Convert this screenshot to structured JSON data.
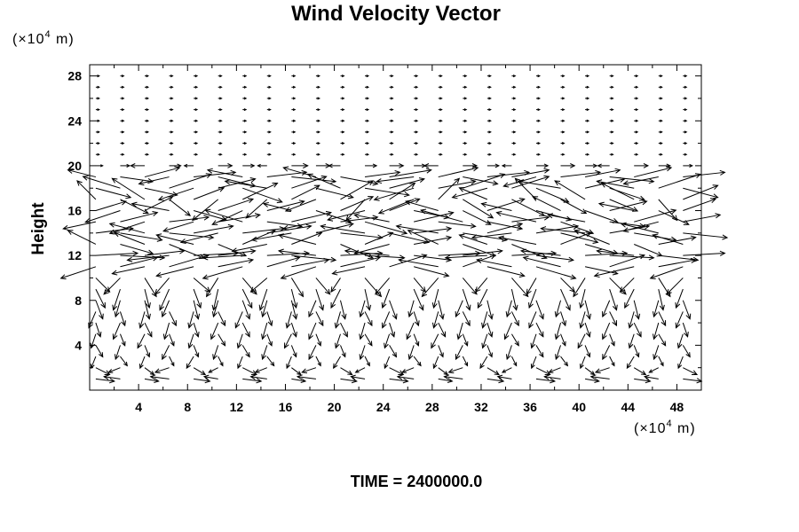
{
  "chart_data": {
    "type": "vector-field",
    "title": "Wind Velocity Vector",
    "ylabel": "Height",
    "xlabel": "",
    "x_unit_prefix": "(×10",
    "x_unit_exp": "4",
    "x_unit_suffix": " m)",
    "y_unit_prefix": "(×10",
    "y_unit_exp": "4",
    "y_unit_suffix": " m)",
    "xlim": [
      0,
      50
    ],
    "ylim": [
      0,
      29
    ],
    "x_ticks": [
      4,
      8,
      12,
      16,
      20,
      24,
      28,
      32,
      36,
      40,
      44,
      48
    ],
    "y_ticks": [
      4,
      8,
      12,
      16,
      20,
      24,
      28
    ],
    "grid": false,
    "vector_grid": {
      "x_start": 0.5,
      "x_step": 2,
      "x_count": 25,
      "y_start": 1,
      "y_step": 1,
      "y_count": 28
    },
    "rows": [
      {
        "y": 20,
        "u": [
          0.3,
          0.4,
          -0.6,
          0.5,
          -0.4,
          0.6,
          0.5,
          -0.4,
          0.7,
          0.6,
          -0.5,
          0.5,
          0.6,
          0.5,
          -0.6,
          0.6,
          0.5,
          -0.4,
          0.5,
          0.6,
          0.5,
          -0.5,
          0.6,
          0.5,
          0.4
        ],
        "v": [
          0,
          0,
          0,
          0,
          0,
          0,
          0,
          0,
          0,
          0,
          0,
          0,
          0,
          0,
          0,
          0,
          0,
          0,
          0,
          0,
          0,
          0,
          0,
          0,
          0
        ]
      },
      {
        "y": 19,
        "u": [
          -1.2,
          1.4,
          1.5,
          -1.3,
          1.8,
          1.6,
          -1.5,
          1.7,
          1.9,
          -1.4,
          1.6,
          1.5,
          1.8,
          -1.6,
          1.7,
          1.5,
          1.8,
          1.6,
          -1.4,
          1.7,
          1.5,
          1.9,
          1.6,
          -1.5,
          1.8
        ],
        "v": [
          0.3,
          -0.2,
          0.4,
          -0.3,
          0.2,
          -0.4,
          0.3,
          0.2,
          -0.2,
          0.4,
          -0.3,
          0.2,
          0.3,
          -0.2,
          0.4,
          -0.3,
          0.2,
          0.3,
          -0.4,
          0.2,
          0.3,
          -0.2,
          0.4,
          -0.3,
          0.2
        ]
      },
      {
        "y": 18,
        "u": [
          1.5,
          -1.6,
          1.4,
          1.8,
          -1.5,
          1.6,
          1.7,
          -1.8,
          1.5,
          1.6,
          -1.4,
          1.9,
          1.5,
          -1.7,
          1.6,
          1.8,
          -1.5,
          1.6,
          1.4,
          -1.8,
          1.7,
          1.5,
          -1.6,
          1.8,
          1.5
        ],
        "v": [
          -0.4,
          0.5,
          -0.3,
          0.6,
          -0.5,
          0.4,
          -0.6,
          0.3,
          0.5,
          -0.4,
          0.6,
          -0.3,
          0.4,
          -0.5,
          0.3,
          0.6,
          -0.4,
          0.5,
          -0.6,
          0.3,
          0.4,
          -0.5,
          0.3,
          0.6,
          -0.4
        ]
      },
      {
        "y": 17,
        "u": [
          -0.8,
          1.2,
          -1.4,
          0.9,
          1.3,
          -1.1,
          1.5,
          -0.9,
          1.2,
          -1.3,
          1.4,
          -0.8,
          1.1,
          -1.5,
          0.9,
          1.3,
          -1.2,
          1.4,
          -0.9,
          1.1,
          -1.3,
          1.2,
          -1.4,
          0.8,
          1.5
        ],
        "v": [
          0.8,
          -0.6,
          0.9,
          -0.7,
          0.5,
          -0.9,
          0.7,
          -0.8,
          0.6,
          -0.5,
          0.8,
          -0.9,
          0.7,
          -0.6,
          0.9,
          -0.8,
          0.5,
          -0.7,
          0.9,
          -0.6,
          0.8,
          -0.5,
          0.7,
          -0.9,
          0.6
        ]
      },
      {
        "y": 16,
        "u": [
          1.3,
          -1.5,
          1.2,
          -1.6,
          1.4,
          1.5,
          -1.3,
          1.6,
          -1.2,
          1.5,
          1.4,
          -1.6,
          1.3,
          1.5,
          -1.4,
          1.2,
          1.6,
          -1.3,
          1.5,
          -1.2,
          1.4,
          1.6,
          -1.5,
          1.3,
          1.4
        ],
        "v": [
          0.4,
          -0.5,
          0.6,
          0.3,
          -0.4,
          0.5,
          -0.6,
          0.4,
          0.3,
          -0.5,
          0.6,
          -0.4,
          0.5,
          -0.3,
          0.4,
          -0.6,
          0.5,
          0.3,
          -0.4,
          0.6,
          -0.5,
          0.4,
          0.3,
          -0.6,
          0.5
        ]
      },
      {
        "y": 15,
        "u": [
          -1.4,
          1.6,
          -1.5,
          1.7,
          -1.3,
          1.8,
          -1.6,
          1.5,
          1.7,
          -1.4,
          1.6,
          1.8,
          -1.5,
          1.7,
          1.6,
          -1.8,
          1.5,
          1.6,
          -1.7,
          1.4,
          -1.6,
          1.5,
          1.8,
          -1.5,
          1.6
        ],
        "v": [
          -0.3,
          0.4,
          -0.5,
          0.2,
          -0.4,
          0.3,
          0.5,
          -0.2,
          0.4,
          -0.3,
          0.2,
          -0.5,
          0.3,
          0.4,
          -0.2,
          0.5,
          -0.3,
          0.2,
          0.4,
          -0.5,
          0.3,
          -0.2,
          0.5,
          -0.4,
          0.3
        ]
      },
      {
        "y": 14,
        "u": [
          1.6,
          1.8,
          -1.5,
          1.9,
          1.7,
          -1.6,
          1.8,
          1.9,
          -1.7,
          1.6,
          1.8,
          -1.9,
          1.7,
          1.6,
          -1.8,
          1.9,
          1.5,
          -1.7,
          1.8,
          1.6,
          -1.9,
          1.7,
          1.8,
          -1.6,
          1.9
        ],
        "v": [
          0.2,
          -0.3,
          0.4,
          -0.2,
          0.3,
          -0.4,
          0.2,
          0.3,
          -0.3,
          0.4,
          -0.2,
          0.3,
          -0.4,
          0.2,
          0.3,
          -0.3,
          0.4,
          -0.2,
          0.3,
          -0.4,
          0.2,
          0.3,
          -0.3,
          0.4,
          -0.2
        ]
      },
      {
        "y": 13,
        "u": [
          -1.2,
          1.4,
          -1.3,
          1.5,
          -1.6,
          1.2,
          1.4,
          -1.5,
          1.3,
          -1.6,
          1.4,
          1.2,
          -1.5,
          1.6,
          -1.3,
          1.4,
          -1.2,
          1.5,
          -1.6,
          1.3,
          1.4,
          -1.5,
          1.2,
          1.6,
          -1.3
        ],
        "v": [
          0.6,
          -0.4,
          0.5,
          -0.6,
          0.4,
          -0.5,
          0.6,
          -0.3,
          0.5,
          0.4,
          -0.6,
          0.5,
          -0.4,
          0.3,
          0.6,
          -0.5,
          0.4,
          -0.6,
          0.3,
          0.5,
          -0.4,
          0.6,
          -0.5,
          0.3,
          0.4
        ]
      },
      {
        "y": 12,
        "u": [
          1.8,
          1.9,
          1.7,
          -1.8,
          1.9,
          1.6,
          -1.7,
          1.8,
          1.9,
          -1.6,
          1.8,
          1.7,
          -1.9,
          1.6,
          1.8,
          1.7,
          -1.8,
          1.9,
          1.6,
          -1.7,
          1.8,
          1.9,
          -1.6,
          1.7,
          1.8
        ],
        "v": [
          0.1,
          -0.1,
          0.2,
          -0.2,
          0.1,
          0.2,
          -0.1,
          0.1,
          -0.2,
          0.2,
          0.1,
          -0.1,
          0.2,
          -0.2,
          0.1,
          0.2,
          -0.1,
          0.1,
          -0.2,
          0.2,
          0.1,
          -0.1,
          0.2,
          -0.2,
          0.1
        ]
      },
      {
        "y": 11,
        "u": [
          -1.5,
          1.6,
          -1.4,
          1.7,
          -1.6,
          1.5,
          -1.7,
          1.4,
          1.6,
          -1.5,
          1.7,
          -1.4,
          1.6,
          1.5,
          -1.7,
          1.4,
          1.6,
          -1.5,
          1.7,
          -1.6,
          1.4,
          1.5,
          -1.7,
          1.6,
          -1.4
        ],
        "v": [
          -0.5,
          0.4,
          -0.3,
          0.5,
          -0.4,
          0.3,
          -0.5,
          0.4,
          0.3,
          -0.5,
          0.4,
          -0.3,
          0.5,
          -0.4,
          0.3,
          0.5,
          -0.4,
          0.3,
          -0.5,
          0.4,
          -0.3,
          0.5,
          -0.4,
          0.3,
          -0.5
        ]
      },
      {
        "y": 10,
        "u": [
          0.6,
          -0.7,
          0.5,
          -0.6,
          0.7,
          -0.5,
          0.6,
          -0.7,
          0.5,
          0.6,
          -0.4,
          0.7,
          -0.6,
          0.5,
          -0.7,
          0.6,
          -0.5,
          0.7,
          -0.4,
          0.6,
          -0.5,
          0.7,
          -0.6,
          0.5,
          -0.7
        ],
        "v": [
          -0.6,
          -0.7,
          -0.8,
          -0.7,
          -0.6,
          -0.8,
          -0.7,
          -0.6,
          -0.8,
          -0.7,
          -0.6,
          -0.8,
          -0.7,
          -0.6,
          -0.8,
          -0.7,
          -0.6,
          -0.8,
          -0.7,
          -0.6,
          -0.8,
          -0.7,
          -0.6,
          -0.8,
          -0.7
        ]
      },
      {
        "y": 9,
        "u": [
          0.4,
          -0.3,
          0.2,
          -0.4,
          0.3,
          -0.2,
          0.4,
          -0.3,
          0.2,
          0.3,
          -0.4,
          0.2,
          -0.3,
          0.4,
          -0.2,
          0.3,
          -0.4,
          0.2,
          -0.3,
          0.4,
          -0.2,
          0.3,
          -0.4,
          0.2,
          -0.3
        ],
        "v": [
          -0.8,
          -0.9,
          -0.8,
          -0.9,
          -0.8,
          -0.9,
          -0.8,
          -0.9,
          -0.8,
          -0.9,
          -0.8,
          -0.9,
          -0.8,
          -0.9,
          -0.8,
          -0.9,
          -0.8,
          -0.9,
          -0.8,
          -0.9,
          -0.8,
          -0.9,
          -0.8,
          -0.9,
          -0.8
        ]
      },
      {
        "y": 8,
        "u": [
          0.3,
          -0.2,
          0.2,
          -0.3,
          0.2,
          -0.2,
          0.3,
          -0.2,
          0.2,
          -0.3,
          0.2,
          -0.2,
          0.3,
          -0.2,
          0.2,
          -0.3,
          0.2,
          -0.2,
          0.3,
          -0.2,
          0.2,
          -0.3,
          0.2,
          -0.2,
          0.3
        ],
        "v": [
          -0.8,
          -0.7,
          -0.8,
          -0.7,
          -0.8,
          -0.7,
          -0.8,
          -0.7,
          -0.8,
          -0.7,
          -0.8,
          -0.7,
          -0.8,
          -0.7,
          -0.8,
          -0.7,
          -0.8,
          -0.7,
          -0.8,
          -0.7,
          -0.8,
          -0.7,
          -0.8,
          -0.7,
          -0.8
        ]
      },
      {
        "y": 7,
        "u": [
          -0.3,
          0.2,
          -0.2,
          0.3,
          -0.2,
          0.3,
          -0.3,
          0.2,
          -0.2,
          0.3,
          -0.2,
          0.3,
          -0.3,
          0.2,
          -0.2,
          0.3,
          -0.2,
          0.3,
          -0.3,
          0.2,
          -0.2,
          0.3,
          -0.2,
          0.3,
          -0.3
        ],
        "v": [
          -0.7,
          -0.6,
          -0.7,
          -0.6,
          -0.7,
          -0.6,
          -0.7,
          -0.6,
          -0.7,
          -0.6,
          -0.7,
          -0.6,
          -0.7,
          -0.6,
          -0.7,
          -0.6,
          -0.7,
          -0.6,
          -0.7,
          -0.6,
          -0.7,
          -0.6,
          -0.7,
          -0.6,
          -0.7
        ]
      },
      {
        "y": 6,
        "u": [
          0.2,
          -0.3,
          0.3,
          -0.2,
          0.2,
          -0.3,
          0.3,
          -0.2,
          0.2,
          -0.3,
          0.3,
          -0.2,
          0.2,
          -0.3,
          0.3,
          -0.2,
          0.2,
          -0.3,
          0.3,
          -0.2,
          0.2,
          -0.3,
          0.3,
          -0.2,
          0.2
        ],
        "v": [
          -0.6,
          -0.7,
          -0.6,
          -0.7,
          -0.6,
          -0.7,
          -0.6,
          -0.7,
          -0.6,
          -0.7,
          -0.6,
          -0.7,
          -0.6,
          -0.7,
          -0.6,
          -0.7,
          -0.6,
          -0.7,
          -0.6,
          -0.7,
          -0.6,
          -0.7,
          -0.6,
          -0.7,
          -0.6
        ]
      },
      {
        "y": 5,
        "u": [
          -0.2,
          0.2,
          -0.3,
          0.2,
          -0.2,
          0.3,
          -0.2,
          0.2,
          -0.3,
          0.2,
          -0.2,
          0.3,
          -0.2,
          0.2,
          -0.3,
          0.2,
          -0.2,
          0.3,
          -0.2,
          0.2,
          -0.3,
          0.2,
          -0.2,
          0.3,
          -0.2
        ],
        "v": [
          -0.6,
          -0.5,
          -0.6,
          -0.5,
          -0.6,
          -0.5,
          -0.6,
          -0.5,
          -0.6,
          -0.5,
          -0.6,
          -0.5,
          -0.6,
          -0.5,
          -0.6,
          -0.5,
          -0.6,
          -0.5,
          -0.6,
          -0.5,
          -0.6,
          -0.5,
          -0.6,
          -0.5,
          -0.6
        ]
      },
      {
        "y": 4,
        "u": [
          0.3,
          -0.2,
          0.2,
          -0.3,
          0.2,
          -0.2,
          0.3,
          -0.2,
          0.2,
          -0.3,
          0.2,
          -0.2,
          0.3,
          -0.2,
          0.2,
          -0.3,
          0.2,
          -0.2,
          0.3,
          -0.2,
          0.2,
          -0.3,
          0.2,
          -0.2,
          0.3
        ],
        "v": [
          -0.5,
          -0.6,
          -0.5,
          -0.6,
          -0.5,
          -0.6,
          -0.5,
          -0.6,
          -0.5,
          -0.6,
          -0.5,
          -0.6,
          -0.5,
          -0.6,
          -0.5,
          -0.6,
          -0.5,
          -0.6,
          -0.5,
          -0.6,
          -0.5,
          -0.6,
          -0.5,
          -0.6,
          -0.5
        ]
      },
      {
        "y": 3,
        "u": [
          -0.2,
          0.3,
          -0.2,
          0.2,
          -0.3,
          0.2,
          -0.2,
          0.3,
          -0.2,
          0.2,
          -0.3,
          0.2,
          -0.2,
          0.3,
          -0.2,
          0.2,
          -0.3,
          0.2,
          -0.2,
          0.3,
          -0.2,
          0.2,
          -0.3,
          0.2,
          -0.2
        ],
        "v": [
          -0.5,
          -0.4,
          -0.5,
          -0.4,
          -0.5,
          -0.4,
          -0.5,
          -0.4,
          -0.5,
          -0.4,
          -0.5,
          -0.4,
          -0.5,
          -0.4,
          -0.5,
          -0.4,
          -0.5,
          -0.4,
          -0.5,
          -0.4,
          -0.5,
          -0.4,
          -0.5,
          -0.4,
          -0.5
        ]
      },
      {
        "y": 2,
        "u": [
          0.6,
          -0.5,
          0.4,
          -0.6,
          0.5,
          -0.4,
          0.6,
          -0.5,
          0.4,
          -0.6,
          0.5,
          -0.4,
          0.6,
          -0.5,
          0.4,
          -0.6,
          0.5,
          -0.4,
          0.6,
          -0.5,
          0.4,
          -0.6,
          0.5,
          -0.4,
          0.6
        ],
        "v": [
          -0.3,
          -0.2,
          -0.3,
          -0.2,
          -0.3,
          -0.2,
          -0.3,
          -0.2,
          -0.3,
          -0.2,
          -0.3,
          -0.2,
          -0.3,
          -0.2,
          -0.3,
          -0.2,
          -0.3,
          -0.2,
          -0.3,
          -0.2,
          -0.3,
          -0.2,
          -0.3,
          -0.2,
          -0.3
        ]
      },
      {
        "y": 1,
        "u": [
          0.8,
          -0.7,
          0.6,
          -0.8,
          0.7,
          -0.6,
          0.8,
          -0.7,
          0.6,
          -0.8,
          0.7,
          -0.6,
          0.8,
          -0.7,
          0.6,
          -0.8,
          0.7,
          -0.6,
          0.8,
          -0.7,
          0.6,
          -0.8,
          0.7,
          -0.6,
          0.8
        ],
        "v": [
          -0.1,
          0.1,
          -0.1,
          0.1,
          -0.1,
          0.1,
          -0.1,
          0.1,
          -0.1,
          0.1,
          -0.1,
          0.1,
          -0.1,
          0.1,
          -0.1,
          0.1,
          -0.1,
          0.1,
          -0.1,
          0.1,
          -0.1,
          0.1,
          -0.1,
          0.1,
          -0.1
        ]
      }
    ],
    "upper_rows_y": [
      21,
      22,
      23,
      24,
      25,
      26,
      27,
      28
    ],
    "upper_u": 0.15,
    "upper_v": 0.0
  },
  "footer": {
    "time_label": "TIME = 2400000.0"
  }
}
